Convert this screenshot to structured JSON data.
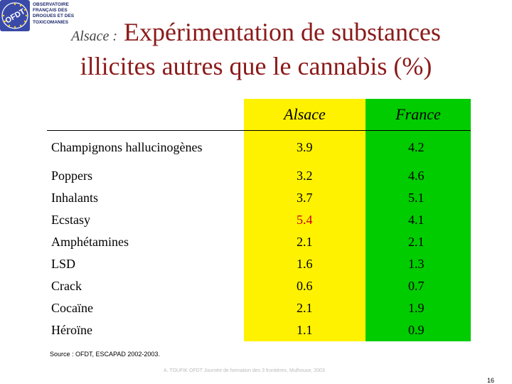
{
  "logo": {
    "badge": "OFDT",
    "lines": [
      "OBSERVATOIRE",
      "FRANÇAIS DES",
      "DROGUES ET DES",
      "TOXICOMANIES"
    ]
  },
  "title": {
    "region": "Alsace :",
    "line1": "Expérimentation de substances",
    "line2": "illicites autres que le cannabis (%)"
  },
  "columns": {
    "alsace": "Alsace",
    "france": "France"
  },
  "rows": [
    {
      "name": "Champignons hallucinogènes",
      "alsace": "3.9",
      "france": "4.2"
    },
    {
      "name": "Poppers",
      "alsace": "3.2",
      "france": "4.6"
    },
    {
      "name": "Inhalants",
      "alsace": "3.7",
      "france": "5.1"
    },
    {
      "name": "Ecstasy",
      "alsace": "5.4",
      "france": "4.1"
    },
    {
      "name": "Amphétamines",
      "alsace": "2.1",
      "france": "2.1"
    },
    {
      "name": "LSD",
      "alsace": "1.6",
      "france": "1.3"
    },
    {
      "name": "Crack",
      "alsace": "0.6",
      "france": "0.7"
    },
    {
      "name": "Cocaïne",
      "alsace": "2.1",
      "france": "1.9"
    },
    {
      "name": "Héroïne",
      "alsace": "1.1",
      "france": "0.9"
    }
  ],
  "colors": {
    "alsace_bg": "#fff200",
    "france_bg": "#00cc00",
    "title": "#8b1a1a",
    "highlight": "#cc0000"
  },
  "source": "Source : OFDT, ESCAPAD 2002-2003.",
  "footer": "A. TOUFIK OFDT Journée de formation des 3 frontières, Mulhouse, 2003",
  "page_number": "16"
}
